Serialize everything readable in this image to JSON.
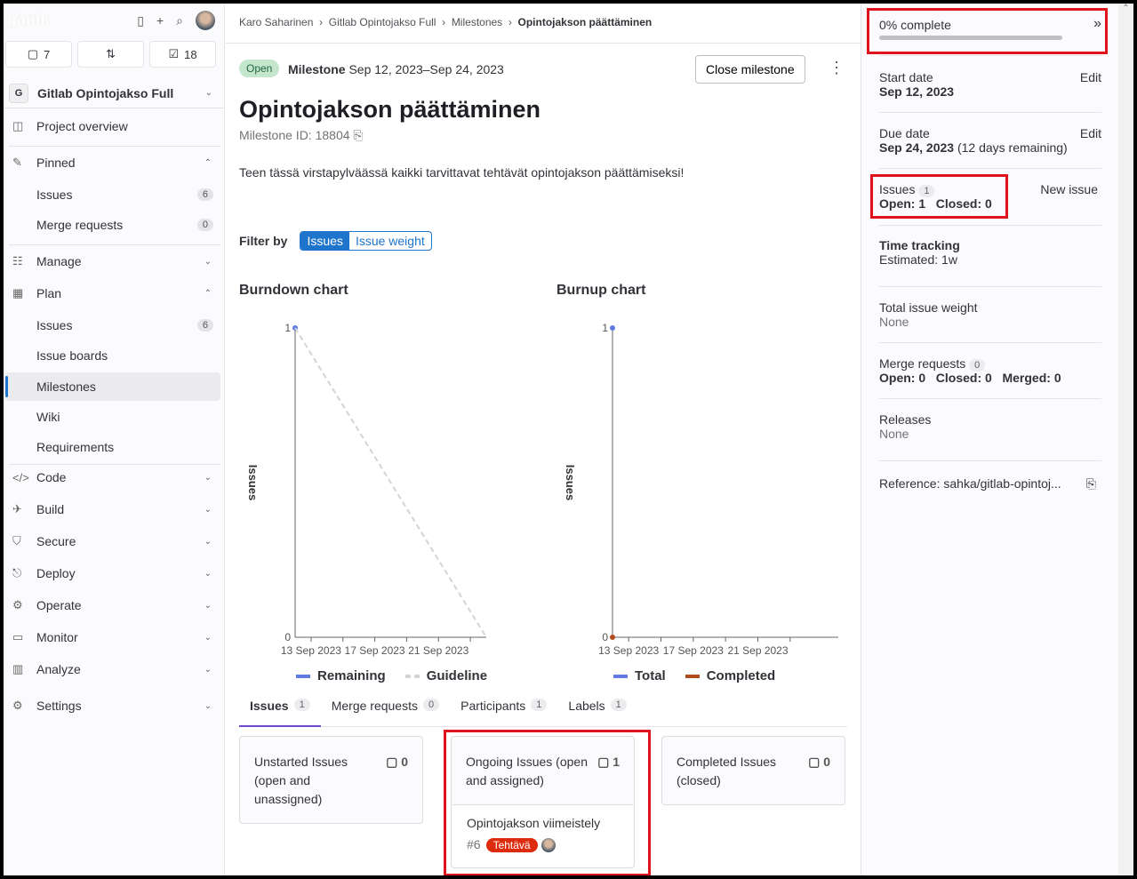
{
  "sidebar": {
    "logo": "jamk",
    "counts": {
      "issues": "7",
      "merge_requests": "",
      "todos": "18"
    },
    "project": {
      "initial": "G",
      "name": "Gitlab Opintojakso Full"
    },
    "items": [
      {
        "label": "Project overview"
      },
      {
        "label": "Pinned"
      },
      {
        "label": "Issues",
        "count": "6"
      },
      {
        "label": "Merge requests",
        "count": "0"
      },
      {
        "label": "Manage"
      },
      {
        "label": "Plan"
      },
      {
        "label": "Issues",
        "count": "6"
      },
      {
        "label": "Issue boards"
      },
      {
        "label": "Milestones"
      },
      {
        "label": "Wiki"
      },
      {
        "label": "Requirements"
      },
      {
        "label": "Code"
      },
      {
        "label": "Build"
      },
      {
        "label": "Secure"
      },
      {
        "label": "Deploy"
      },
      {
        "label": "Operate"
      },
      {
        "label": "Monitor"
      },
      {
        "label": "Analyze"
      },
      {
        "label": "Settings"
      }
    ]
  },
  "breadcrumb": [
    "Karo Saharinen",
    "Gitlab Opintojakso Full",
    "Milestones",
    "Opintojakson päättäminen"
  ],
  "header": {
    "status": "Open",
    "milestone_label": "Milestone",
    "dates": "Sep 12, 2023–Sep 24, 2023",
    "close_button": "Close milestone"
  },
  "title": "Opintojakson päättäminen",
  "milestone_id": "Milestone ID: 18804",
  "description": "Teen tässä virstapylväässä kaikki tarvittavat tehtävät opintojakson päättämiseksi!",
  "filter": {
    "label": "Filter by",
    "options": [
      "Issues",
      "Issue weight"
    ],
    "selected": "Issues"
  },
  "chart_data": [
    {
      "type": "line",
      "title": "Burndown chart",
      "ylabel": "Issues",
      "ylim": [
        0,
        1
      ],
      "x_ticks": [
        "13 Sep 2023",
        "17 Sep 2023",
        "21 Sep 2023"
      ],
      "xlim": [
        "2023-09-12",
        "2023-09-24"
      ],
      "series": [
        {
          "name": "Remaining",
          "color": "#617ae2",
          "points": [
            [
              "2023-09-12",
              1
            ]
          ]
        },
        {
          "name": "Guideline",
          "color": "#d4d4d4",
          "dashed": true,
          "points": [
            [
              "2023-09-12",
              1
            ],
            [
              "2023-09-24",
              0
            ]
          ]
        }
      ]
    },
    {
      "type": "line",
      "title": "Burnup chart",
      "ylabel": "Issues",
      "ylim": [
        0,
        1
      ],
      "x_ticks": [
        "13 Sep 2023",
        "17 Sep 2023",
        "21 Sep 2023"
      ],
      "xlim": [
        "2023-09-12",
        "2023-09-24"
      ],
      "series": [
        {
          "name": "Total",
          "color": "#617ae2",
          "points": [
            [
              "2023-09-12",
              1
            ]
          ]
        },
        {
          "name": "Completed",
          "color": "#b24b1c",
          "points": [
            [
              "2023-09-12",
              0
            ]
          ]
        }
      ]
    }
  ],
  "tabs": [
    {
      "label": "Issues",
      "count": "1"
    },
    {
      "label": "Merge requests",
      "count": "0"
    },
    {
      "label": "Participants",
      "count": "1"
    },
    {
      "label": "Labels",
      "count": "1"
    }
  ],
  "columns": [
    {
      "title": "Unstarted Issues (open and unassigned)",
      "count": "0",
      "issues": []
    },
    {
      "title": "Ongoing Issues (open and assigned)",
      "count": "1",
      "issues": [
        {
          "title": "Opintojakson viimeistely",
          "ref": "#6",
          "label": "Tehtävä"
        }
      ]
    },
    {
      "title": "Completed Issues (closed)",
      "count": "0",
      "issues": []
    }
  ],
  "right": {
    "progress": {
      "text": "0% complete",
      "percent": 0
    },
    "start": {
      "label": "Start date",
      "value": "Sep 12, 2023",
      "edit": "Edit"
    },
    "due": {
      "label": "Due date",
      "value": "Sep 24, 2023",
      "extra": "(12 days remaining)",
      "edit": "Edit"
    },
    "issues": {
      "label": "Issues",
      "count": "1",
      "open": "Open: 1",
      "closed": "Closed: 0",
      "new": "New issue"
    },
    "time": {
      "label": "Time tracking",
      "value": "Estimated: 1w"
    },
    "weight": {
      "label": "Total issue weight",
      "value": "None"
    },
    "mrs": {
      "label": "Merge requests",
      "count": "0",
      "open": "Open: 0",
      "closed": "Closed: 0",
      "merged": "Merged: 0"
    },
    "releases": {
      "label": "Releases",
      "value": "None"
    },
    "reference": "Reference: sahka/gitlab-opintoj..."
  }
}
